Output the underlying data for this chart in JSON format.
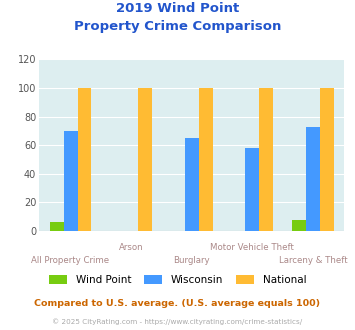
{
  "title_line1": "2019 Wind Point",
  "title_line2": "Property Crime Comparison",
  "categories": [
    "All Property Crime",
    "Arson",
    "Burglary",
    "Motor Vehicle Theft",
    "Larceny & Theft"
  ],
  "series": {
    "Wind Point": [
      6,
      0,
      0,
      0,
      8
    ],
    "Wisconsin": [
      70,
      0,
      65,
      58,
      73
    ],
    "National": [
      100,
      100,
      100,
      100,
      100
    ]
  },
  "colors": {
    "Wind Point": "#77cc11",
    "Wisconsin": "#4499ff",
    "National": "#ffbb33"
  },
  "ylim": [
    0,
    120
  ],
  "yticks": [
    0,
    20,
    40,
    60,
    80,
    100,
    120
  ],
  "bg_color": "#ddeef0",
  "title_color": "#2255cc",
  "footnote1": "Compared to U.S. average. (U.S. average equals 100)",
  "footnote2": "© 2025 CityRating.com - https://www.cityrating.com/crime-statistics/",
  "footnote1_color": "#cc6600",
  "footnote2_color": "#aaaaaa",
  "x_label_row": [
    1,
    0,
    1,
    0,
    1
  ],
  "bar_width": 0.23
}
